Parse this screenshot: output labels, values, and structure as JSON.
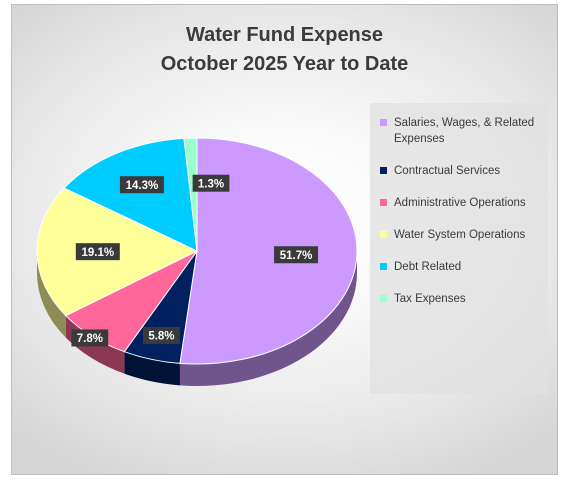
{
  "chart_data": {
    "type": "pie",
    "title": [
      "Water Fund Expense",
      "October 2025 Year to Date"
    ],
    "legend_position": "right",
    "slices": [
      {
        "name": "Salaries, Wages, & Related Expenses",
        "value": 51.7,
        "label": "51.7%",
        "color": "#cc99ff"
      },
      {
        "name": "Contractual Services",
        "value": 5.8,
        "label": "5.8%",
        "color": "#002060"
      },
      {
        "name": "Administrative Operations",
        "value": 7.8,
        "label": "7.8%",
        "color": "#ff6699"
      },
      {
        "name": "Water System Operations",
        "value": 19.1,
        "label": "19.1%",
        "color": "#ffff99"
      },
      {
        "name": "Debt Related",
        "value": 14.3,
        "label": "14.3%",
        "color": "#00ccff"
      },
      {
        "name": "Tax Expenses",
        "value": 1.3,
        "label": "1.3%",
        "color": "#99ffcc"
      }
    ]
  }
}
